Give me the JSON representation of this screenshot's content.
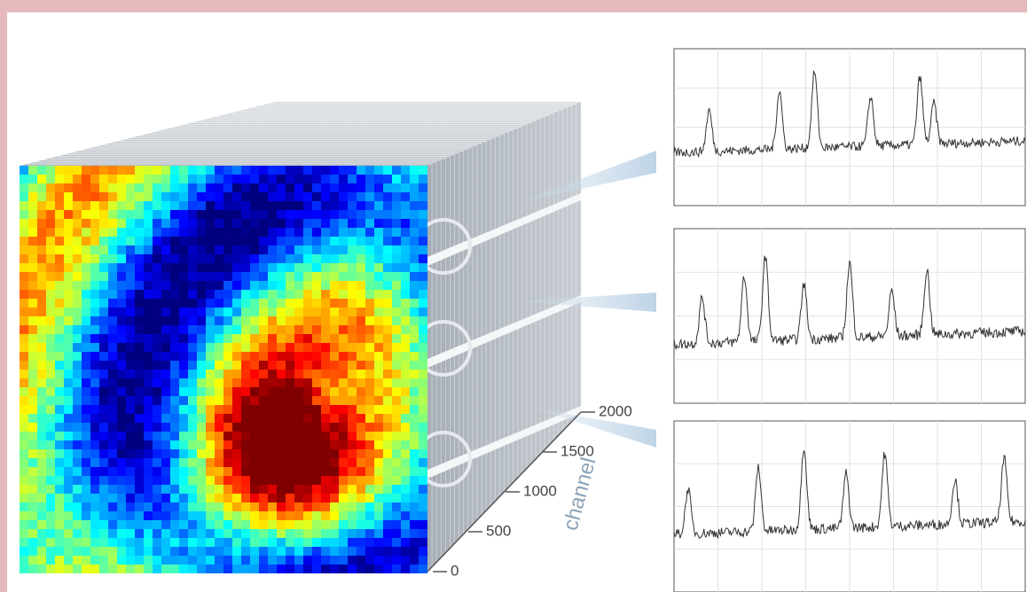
{
  "axis": {
    "label": "channel",
    "ticks": [
      2000,
      1500,
      1000,
      500,
      0
    ]
  }
}
